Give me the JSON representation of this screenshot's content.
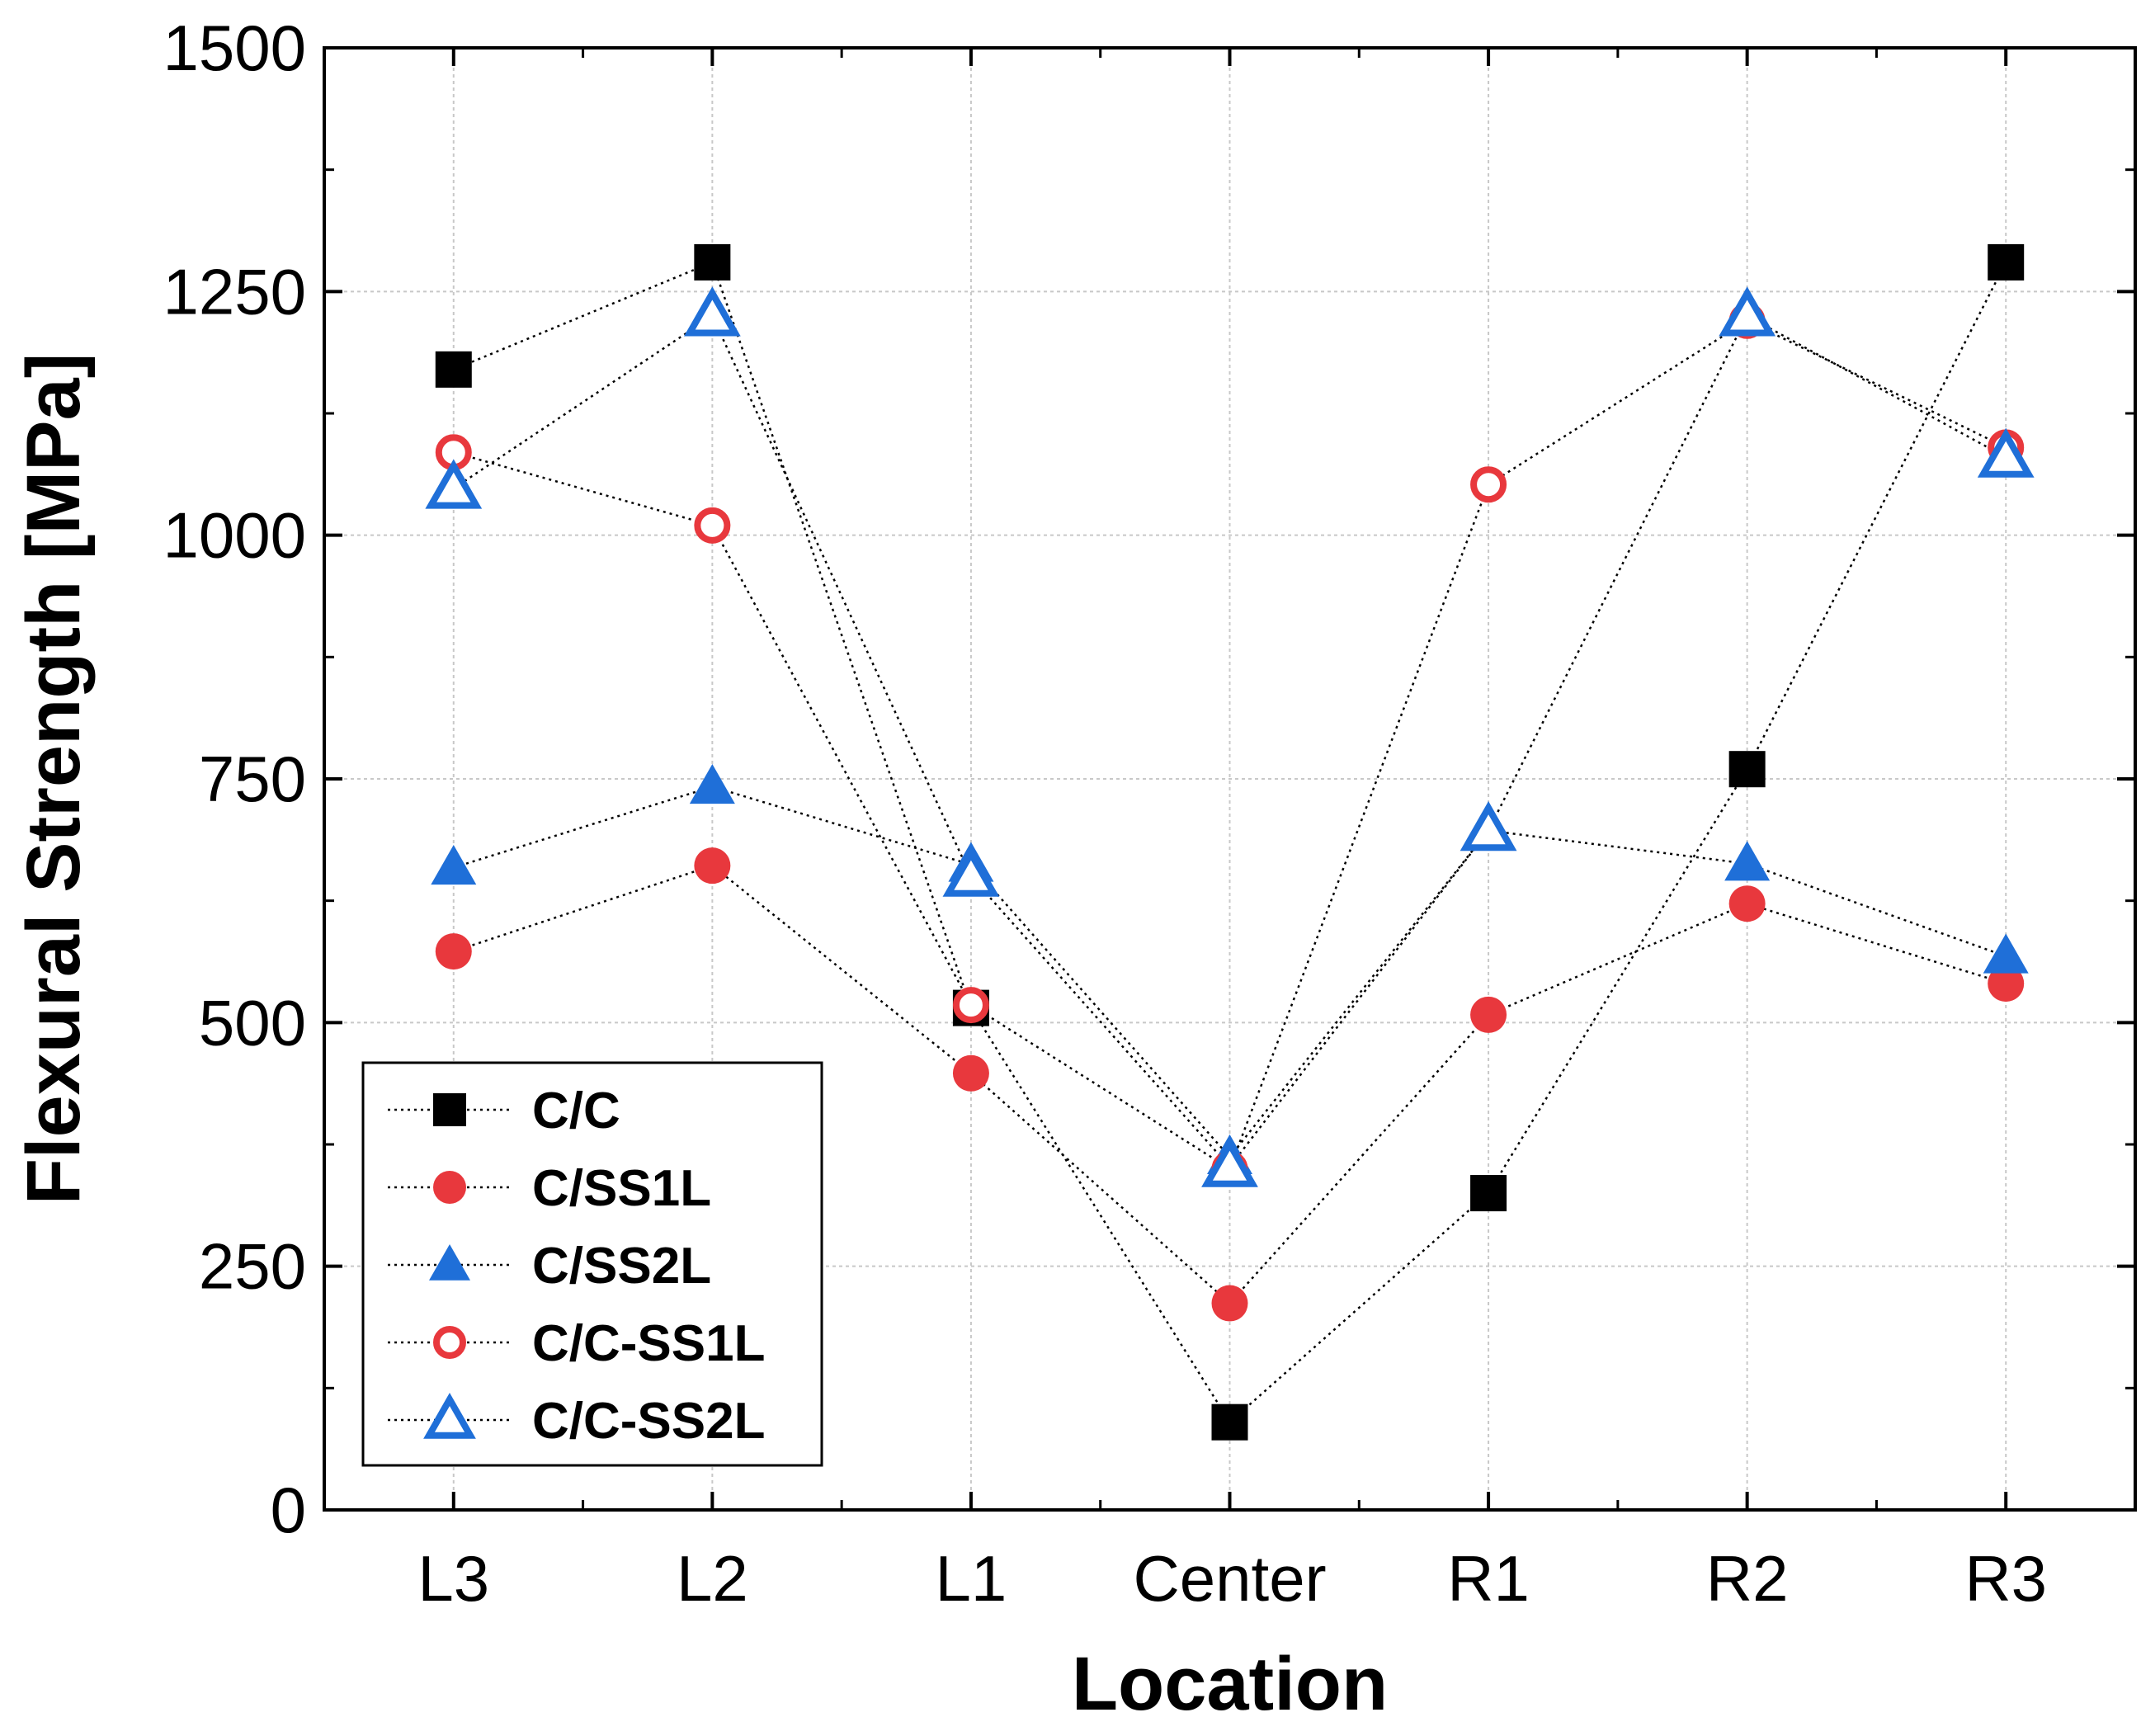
{
  "chart_data": {
    "type": "line",
    "title": "",
    "xlabel": "Location",
    "ylabel": "Flexural Strength [MPa]",
    "categories": [
      "L3",
      "L2",
      "L1",
      "Center",
      "R1",
      "R2",
      "R3"
    ],
    "ylim": [
      0,
      1500
    ],
    "yticks": [
      0,
      250,
      500,
      750,
      1000,
      1250,
      1500
    ],
    "grid": true,
    "legend_position": "bottom-left",
    "series": [
      {
        "name": "C/C",
        "marker": "square",
        "filled": true,
        "color": "#000000",
        "values": [
          1170,
          1280,
          515,
          90,
          325,
          760,
          1280
        ]
      },
      {
        "name": "C/SS1L",
        "marker": "circle",
        "filled": true,
        "color": "#e8383d",
        "values": [
          573,
          661,
          448,
          212,
          508,
          622,
          540
        ]
      },
      {
        "name": "C/SS2L",
        "marker": "triangle",
        "filled": true,
        "color": "#1f6fd8",
        "values": [
          659,
          742,
          662,
          362,
          697,
          663,
          568
        ]
      },
      {
        "name": "C/C-SS1L",
        "marker": "circle",
        "filled": false,
        "color": "#e8383d",
        "values": [
          1085,
          1010,
          518,
          350,
          1052,
          1220,
          1090
        ]
      },
      {
        "name": "C/C-SS2L",
        "marker": "triangle",
        "filled": false,
        "color": "#1f6fd8",
        "values": [
          1048,
          1225,
          650,
          352,
          697,
          1225,
          1080
        ]
      }
    ]
  }
}
